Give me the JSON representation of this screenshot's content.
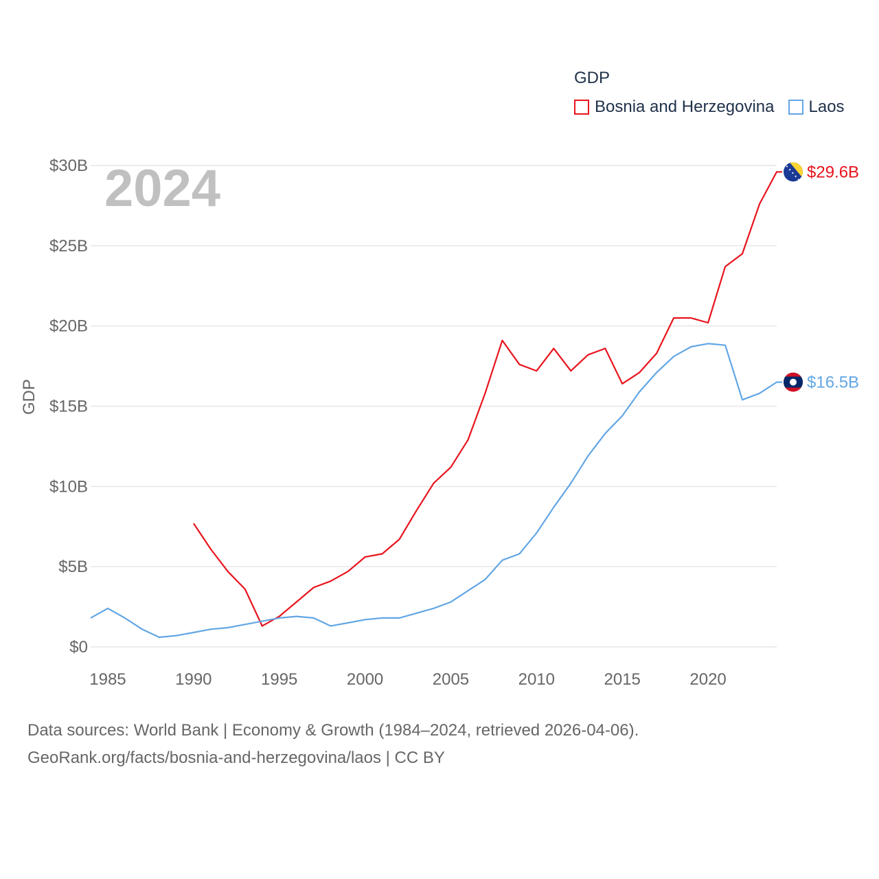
{
  "colors": {
    "bosnia": "#e8131c",
    "laos": "#62a6e4",
    "grid": "#e6e6e6",
    "year": "#c0c0c0"
  },
  "legend": {
    "title": "GDP"
  },
  "year_label": "2024",
  "source": {
    "line1": "Data sources: World Bank | Economy & Growth (1984–2024, retrieved 2026-04-06).",
    "line2": "GeoRank.org/facts/bosnia-and-herzegovina/laos | CC BY"
  },
  "chart_data": {
    "type": "line",
    "title": "GDP",
    "xlabel": "",
    "ylabel": "GDP",
    "xlim": [
      1984,
      2024
    ],
    "ylim": [
      0,
      30
    ],
    "x_ticks": [
      1985,
      1990,
      1995,
      2000,
      2005,
      2010,
      2015,
      2020
    ],
    "y_ticks": [
      {
        "value": 0,
        "label": "$0"
      },
      {
        "value": 5,
        "label": "$5B"
      },
      {
        "value": 10,
        "label": "$10B"
      },
      {
        "value": 15,
        "label": "$15B"
      },
      {
        "value": 20,
        "label": "$20B"
      },
      {
        "value": 25,
        "label": "$25B"
      },
      {
        "value": 30,
        "label": "$30B"
      }
    ],
    "series": [
      {
        "name": "Bosnia and Herzegovina",
        "color": "#e8131c",
        "end_label": "$29.6B",
        "flag": "bosnia-flag-icon",
        "x": [
          1990,
          1991,
          1992,
          1993,
          1994,
          1995,
          1996,
          1997,
          1998,
          1999,
          2000,
          2001,
          2002,
          2003,
          2004,
          2005,
          2006,
          2007,
          2008,
          2009,
          2010,
          2011,
          2012,
          2013,
          2014,
          2015,
          2016,
          2017,
          2018,
          2019,
          2020,
          2021,
          2022,
          2023,
          2024
        ],
        "values": [
          7.7,
          6.1,
          4.7,
          3.6,
          1.3,
          1.9,
          2.8,
          3.7,
          4.1,
          4.7,
          5.6,
          5.8,
          6.7,
          8.5,
          10.2,
          11.2,
          12.9,
          15.8,
          19.1,
          17.6,
          17.2,
          18.6,
          17.2,
          18.2,
          18.6,
          16.4,
          17.1,
          18.3,
          20.5,
          20.5,
          20.2,
          23.7,
          24.5,
          27.6,
          29.6
        ]
      },
      {
        "name": "Laos",
        "color": "#62a6e4",
        "end_label": "$16.5B",
        "flag": "laos-flag-icon",
        "x": [
          1984,
          1985,
          1986,
          1987,
          1988,
          1989,
          1990,
          1991,
          1992,
          1993,
          1994,
          1995,
          1996,
          1997,
          1998,
          1999,
          2000,
          2001,
          2002,
          2003,
          2004,
          2005,
          2006,
          2007,
          2008,
          2009,
          2010,
          2011,
          2012,
          2013,
          2014,
          2015,
          2016,
          2017,
          2018,
          2019,
          2020,
          2021,
          2022,
          2023,
          2024
        ],
        "values": [
          1.8,
          2.4,
          1.8,
          1.1,
          0.6,
          0.7,
          0.9,
          1.1,
          1.2,
          1.4,
          1.6,
          1.8,
          1.9,
          1.8,
          1.3,
          1.5,
          1.7,
          1.8,
          1.8,
          2.1,
          2.4,
          2.8,
          3.5,
          4.2,
          5.4,
          5.8,
          7.1,
          8.7,
          10.2,
          11.9,
          13.3,
          14.4,
          15.9,
          17.1,
          18.1,
          18.7,
          18.9,
          18.8,
          15.4,
          15.8,
          16.5
        ]
      }
    ]
  }
}
